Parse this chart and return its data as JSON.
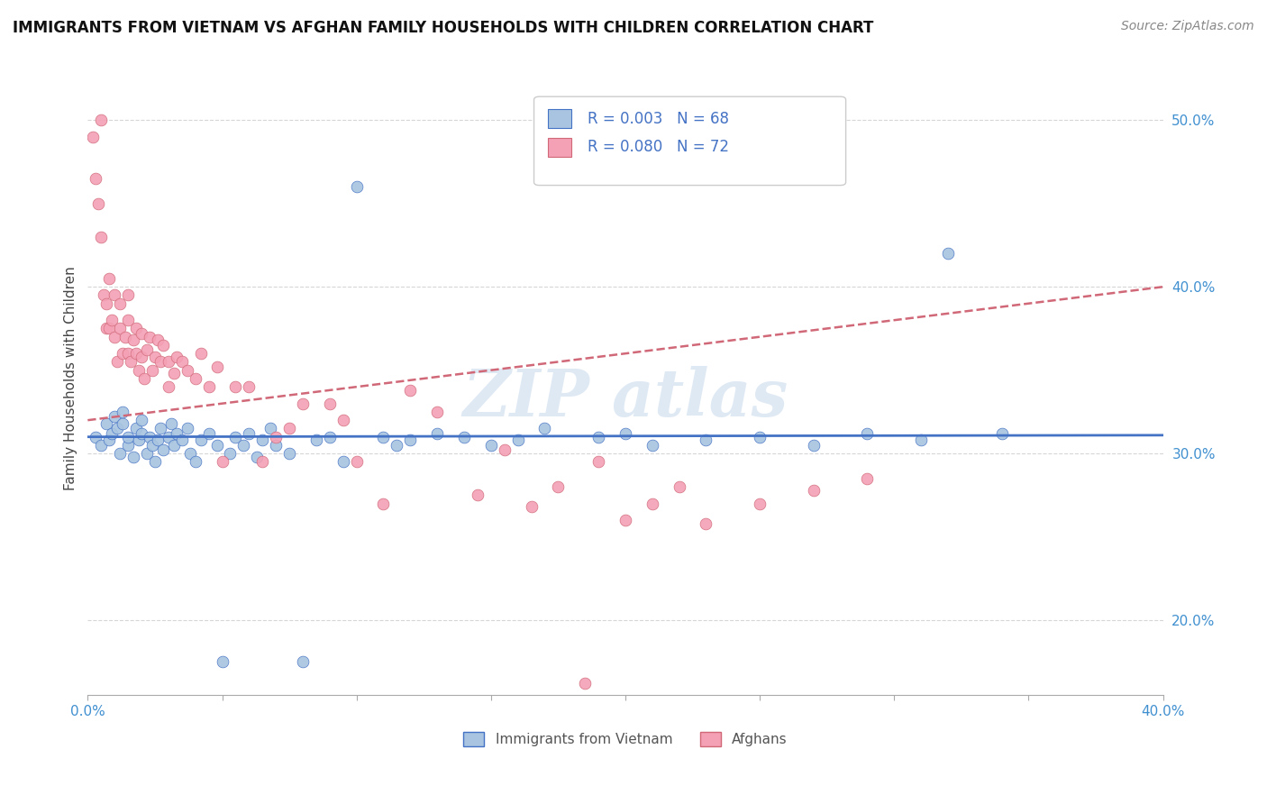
{
  "title": "IMMIGRANTS FROM VIETNAM VS AFGHAN FAMILY HOUSEHOLDS WITH CHILDREN CORRELATION CHART",
  "source": "Source: ZipAtlas.com",
  "ylabel": "Family Households with Children",
  "xlim": [
    0.0,
    0.4
  ],
  "ylim": [
    0.155,
    0.535
  ],
  "xticks": [
    0.0,
    0.05,
    0.1,
    0.15,
    0.2,
    0.25,
    0.3,
    0.35,
    0.4
  ],
  "yticks": [
    0.2,
    0.3,
    0.4,
    0.5
  ],
  "ytick_labels": [
    "20.0%",
    "30.0%",
    "40.0%",
    "50.0%"
  ],
  "xtick_labels": [
    "0.0%",
    "",
    "",
    "",
    "",
    "",
    "",
    "",
    "40.0%"
  ],
  "legend1_label": "Immigrants from Vietnam",
  "legend2_label": "Afghans",
  "r1": 0.003,
  "n1": 68,
  "r2": 0.08,
  "n2": 72,
  "color_vietnam": "#a8c4e0",
  "color_vietnam_edge": "#4472c4",
  "color_afghan": "#f4a0b5",
  "color_afghan_edge": "#d06878",
  "vietnam_x": [
    0.003,
    0.005,
    0.007,
    0.008,
    0.009,
    0.01,
    0.011,
    0.012,
    0.013,
    0.013,
    0.015,
    0.015,
    0.017,
    0.018,
    0.019,
    0.02,
    0.02,
    0.022,
    0.023,
    0.024,
    0.025,
    0.026,
    0.027,
    0.028,
    0.03,
    0.031,
    0.032,
    0.033,
    0.035,
    0.037,
    0.038,
    0.04,
    0.042,
    0.045,
    0.048,
    0.05,
    0.053,
    0.055,
    0.058,
    0.06,
    0.063,
    0.065,
    0.068,
    0.07,
    0.075,
    0.08,
    0.085,
    0.09,
    0.095,
    0.1,
    0.11,
    0.115,
    0.12,
    0.13,
    0.14,
    0.15,
    0.16,
    0.17,
    0.19,
    0.2,
    0.21,
    0.23,
    0.25,
    0.27,
    0.29,
    0.31,
    0.32,
    0.34
  ],
  "vietnam_y": [
    0.31,
    0.305,
    0.318,
    0.308,
    0.312,
    0.322,
    0.315,
    0.3,
    0.318,
    0.325,
    0.305,
    0.31,
    0.298,
    0.315,
    0.308,
    0.312,
    0.32,
    0.3,
    0.31,
    0.305,
    0.295,
    0.308,
    0.315,
    0.302,
    0.31,
    0.318,
    0.305,
    0.312,
    0.308,
    0.315,
    0.3,
    0.295,
    0.308,
    0.312,
    0.305,
    0.175,
    0.3,
    0.31,
    0.305,
    0.312,
    0.298,
    0.308,
    0.315,
    0.305,
    0.3,
    0.175,
    0.308,
    0.31,
    0.295,
    0.46,
    0.31,
    0.305,
    0.308,
    0.312,
    0.31,
    0.305,
    0.308,
    0.315,
    0.31,
    0.312,
    0.305,
    0.308,
    0.31,
    0.305,
    0.312,
    0.308,
    0.42,
    0.312
  ],
  "afghan_x": [
    0.002,
    0.003,
    0.004,
    0.005,
    0.005,
    0.006,
    0.007,
    0.007,
    0.008,
    0.008,
    0.009,
    0.01,
    0.01,
    0.011,
    0.012,
    0.012,
    0.013,
    0.014,
    0.015,
    0.015,
    0.015,
    0.016,
    0.017,
    0.018,
    0.018,
    0.019,
    0.02,
    0.02,
    0.021,
    0.022,
    0.023,
    0.024,
    0.025,
    0.026,
    0.027,
    0.028,
    0.03,
    0.03,
    0.032,
    0.033,
    0.035,
    0.037,
    0.04,
    0.042,
    0.045,
    0.048,
    0.05,
    0.055,
    0.06,
    0.065,
    0.07,
    0.075,
    0.08,
    0.09,
    0.095,
    0.1,
    0.11,
    0.12,
    0.13,
    0.145,
    0.155,
    0.165,
    0.175,
    0.185,
    0.19,
    0.2,
    0.21,
    0.22,
    0.23,
    0.25,
    0.27,
    0.29
  ],
  "afghan_y": [
    0.49,
    0.465,
    0.45,
    0.5,
    0.43,
    0.395,
    0.375,
    0.39,
    0.375,
    0.405,
    0.38,
    0.37,
    0.395,
    0.355,
    0.375,
    0.39,
    0.36,
    0.37,
    0.36,
    0.38,
    0.395,
    0.355,
    0.368,
    0.36,
    0.375,
    0.35,
    0.358,
    0.372,
    0.345,
    0.362,
    0.37,
    0.35,
    0.358,
    0.368,
    0.355,
    0.365,
    0.34,
    0.355,
    0.348,
    0.358,
    0.355,
    0.35,
    0.345,
    0.36,
    0.34,
    0.352,
    0.295,
    0.34,
    0.34,
    0.295,
    0.31,
    0.315,
    0.33,
    0.33,
    0.32,
    0.295,
    0.27,
    0.338,
    0.325,
    0.275,
    0.302,
    0.268,
    0.28,
    0.162,
    0.295,
    0.26,
    0.27,
    0.28,
    0.258,
    0.27,
    0.278,
    0.285
  ],
  "viet_trend_x0": 0.0,
  "viet_trend_y0": 0.31,
  "viet_trend_x1": 0.4,
  "viet_trend_y1": 0.311,
  "afg_trend_x0": 0.0,
  "afg_trend_y0": 0.32,
  "afg_trend_x1": 0.4,
  "afg_trend_y1": 0.4
}
